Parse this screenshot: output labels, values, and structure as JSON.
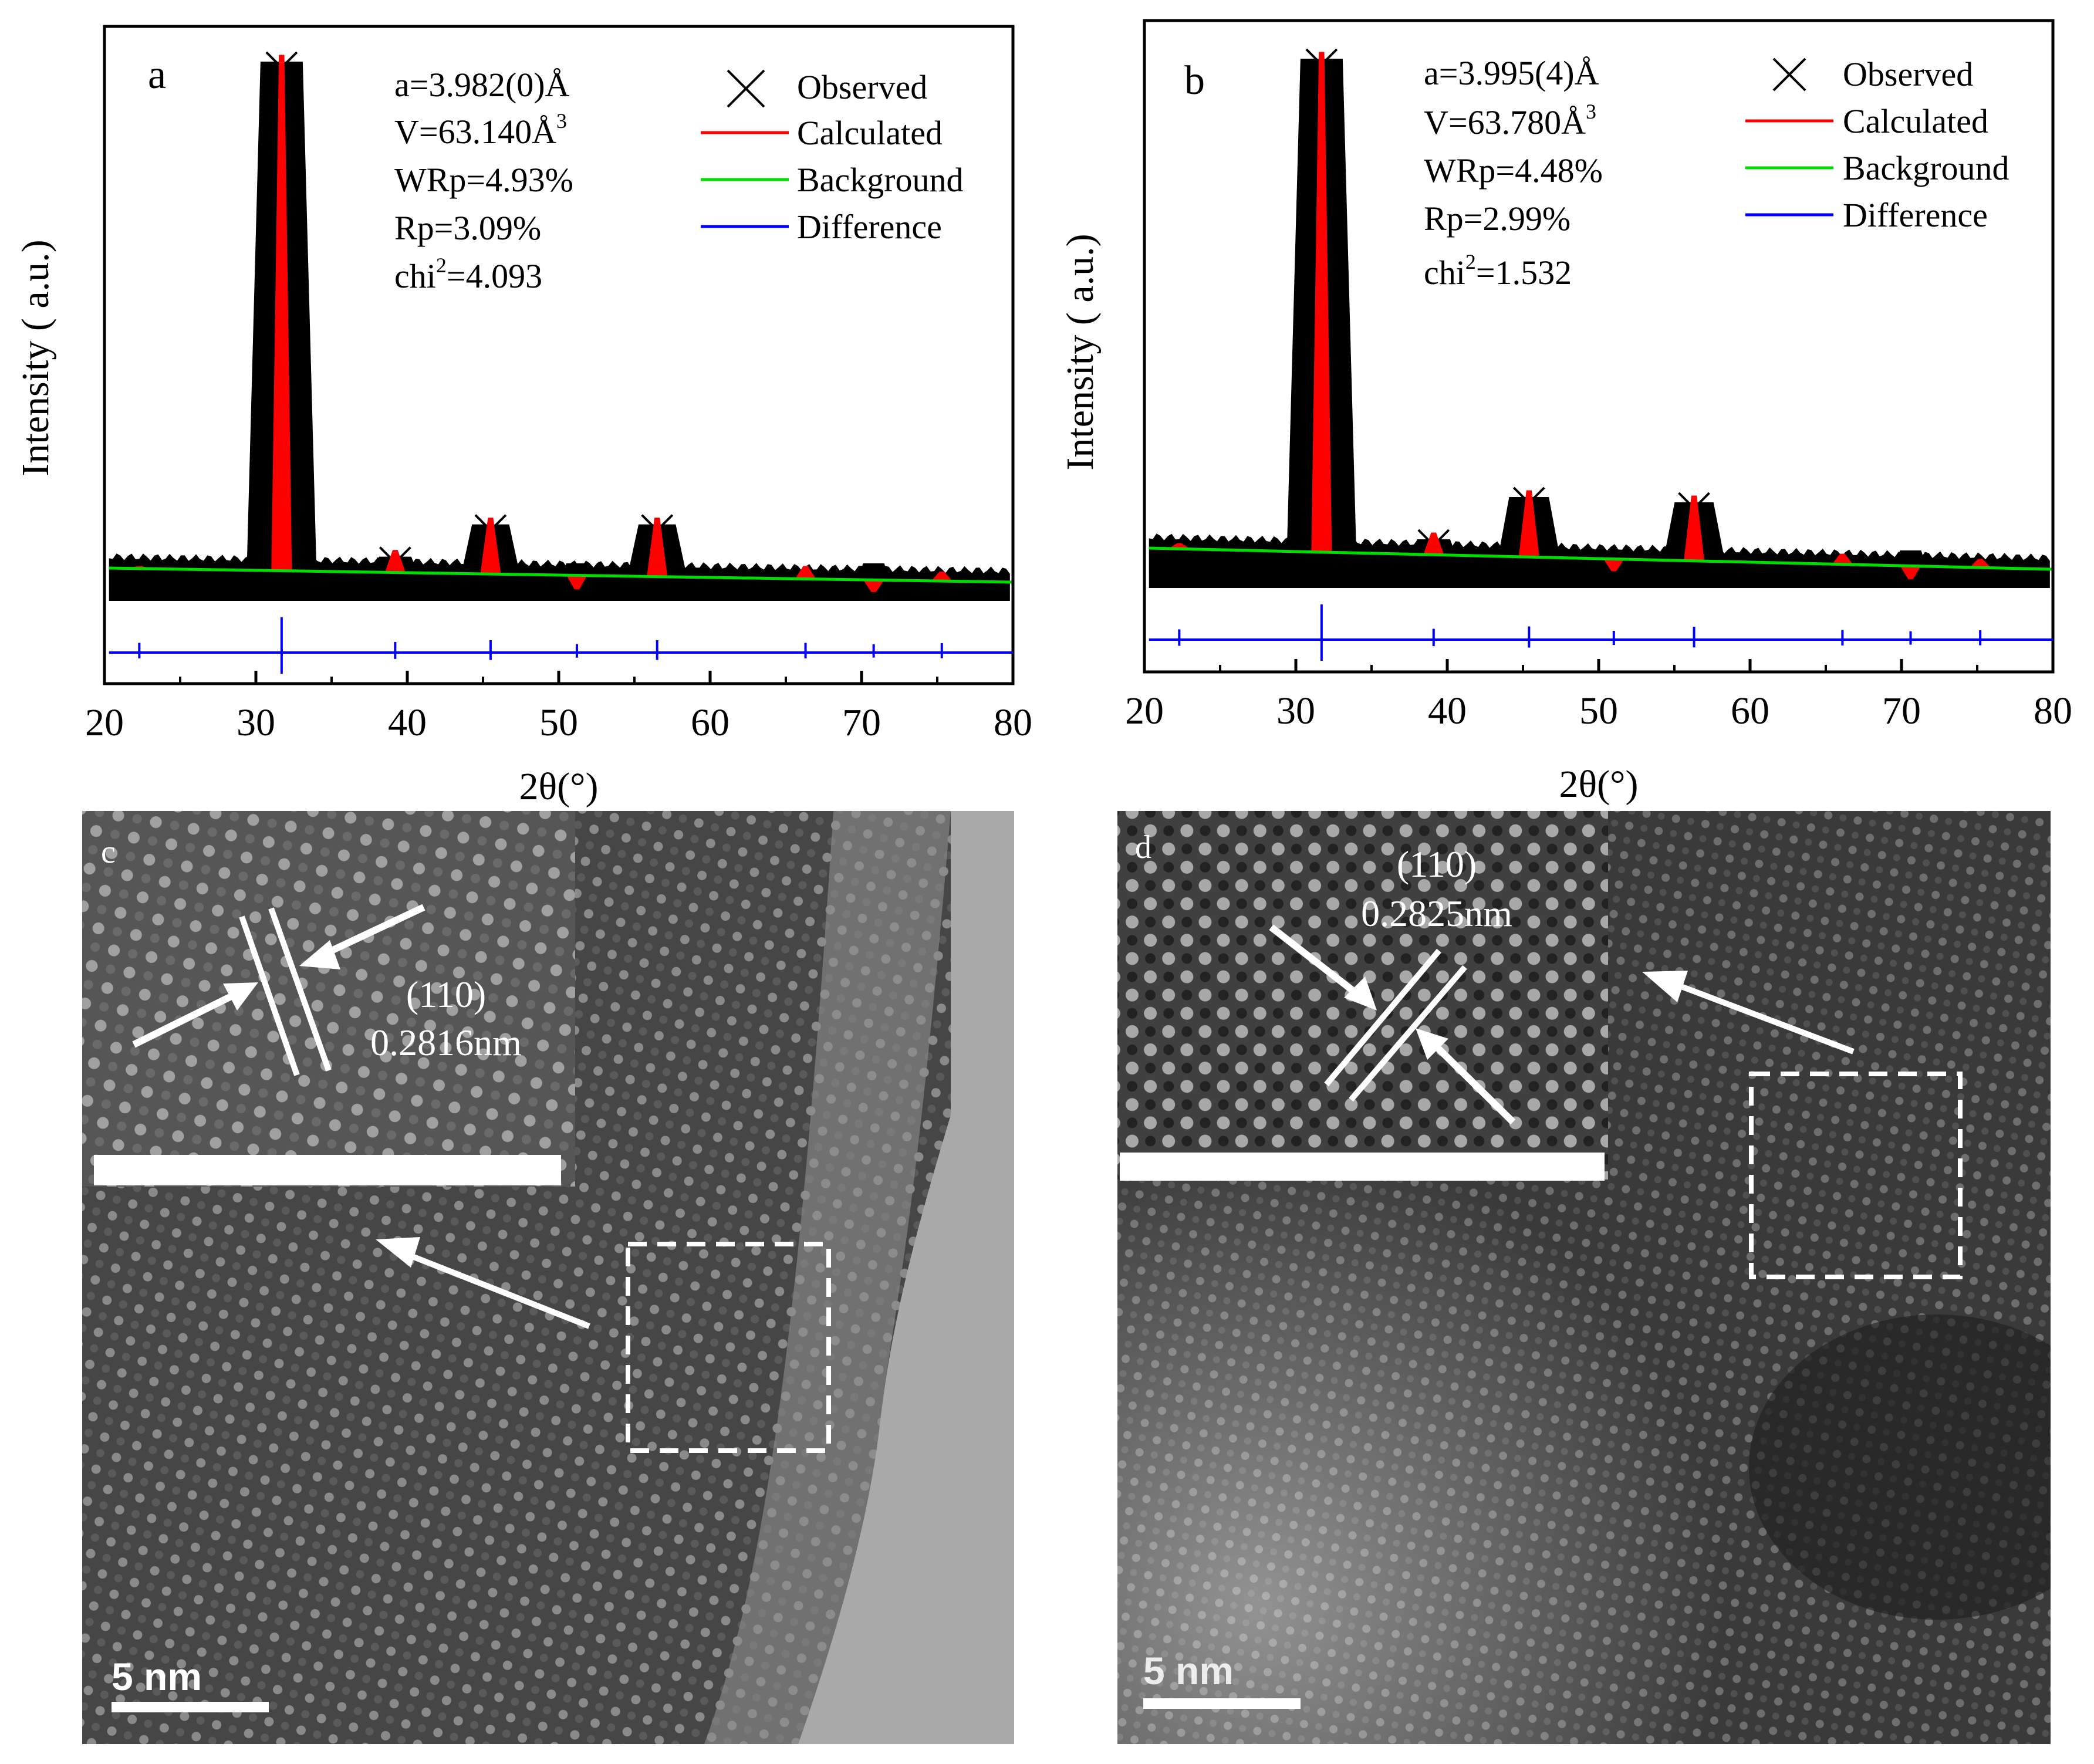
{
  "chart_data": [
    {
      "panel": "a",
      "type": "line",
      "xlabel": "2θ(°)",
      "ylabel": "Intensity ( a.u.)",
      "xlim": [
        20,
        80
      ],
      "xticks": [
        "20",
        "30",
        "40",
        "50",
        "60",
        "70",
        "80"
      ],
      "params": [
        "a=3.982(0)Å",
        "V=63.140Å",
        "WRp=4.93%",
        "Rp=3.09%",
        "chi",
        "=4.093"
      ],
      "legend": [
        "Observed",
        "Calculated",
        "Background",
        "Difference"
      ],
      "peaks": [
        {
          "x": 22.3,
          "h": 0.05
        },
        {
          "x": 31.7,
          "h": 1.0
        },
        {
          "x": 39.2,
          "h": 0.08
        },
        {
          "x": 45.5,
          "h": 0.14
        },
        {
          "x": 51.2,
          "h": 0.01
        },
        {
          "x": 56.5,
          "h": 0.14
        },
        {
          "x": 66.3,
          "h": 0.05
        },
        {
          "x": 70.8,
          "h": 0.005
        },
        {
          "x": 75.3,
          "h": 0.04
        }
      ],
      "background": [
        [
          20,
          0.02
        ],
        [
          80,
          0.0
        ]
      ]
    },
    {
      "panel": "b",
      "type": "line",
      "xlabel": "2θ(°)",
      "ylabel": "Intensity ( a.u.)",
      "xlim": [
        20,
        80
      ],
      "xticks": [
        "20",
        "30",
        "40",
        "50",
        "60",
        "70",
        "80"
      ],
      "params": [
        "a=3.995(4)Å",
        "V=63.780Å",
        "WRp=4.48%",
        "Rp=2.99%",
        "chi",
        "=1.532"
      ],
      "legend": [
        "Observed",
        "Calculated",
        "Background",
        "Difference"
      ],
      "peaks": [
        {
          "x": 22.3,
          "h": 0.07
        },
        {
          "x": 31.7,
          "h": 1.0
        },
        {
          "x": 39.1,
          "h": 0.09
        },
        {
          "x": 45.4,
          "h": 0.17
        },
        {
          "x": 51.0,
          "h": 0.02
        },
        {
          "x": 56.3,
          "h": 0.16
        },
        {
          "x": 66.1,
          "h": 0.05
        },
        {
          "x": 70.6,
          "h": 0.005
        },
        {
          "x": 75.2,
          "h": 0.04
        }
      ],
      "background": [
        [
          20,
          0.03
        ],
        [
          80,
          0.0
        ]
      ]
    }
  ],
  "micrographs": [
    {
      "panel": "c",
      "plane": "(110)",
      "spacing": "0.2816nm",
      "scale": "5 nm"
    },
    {
      "panel": "d",
      "plane": "(110)",
      "spacing": "0.2825nm",
      "scale": "5 nm"
    }
  ],
  "colors": {
    "calculated": "#ff0000",
    "background": "#00dd00",
    "difference": "#0000ff",
    "observed": "#000000"
  }
}
